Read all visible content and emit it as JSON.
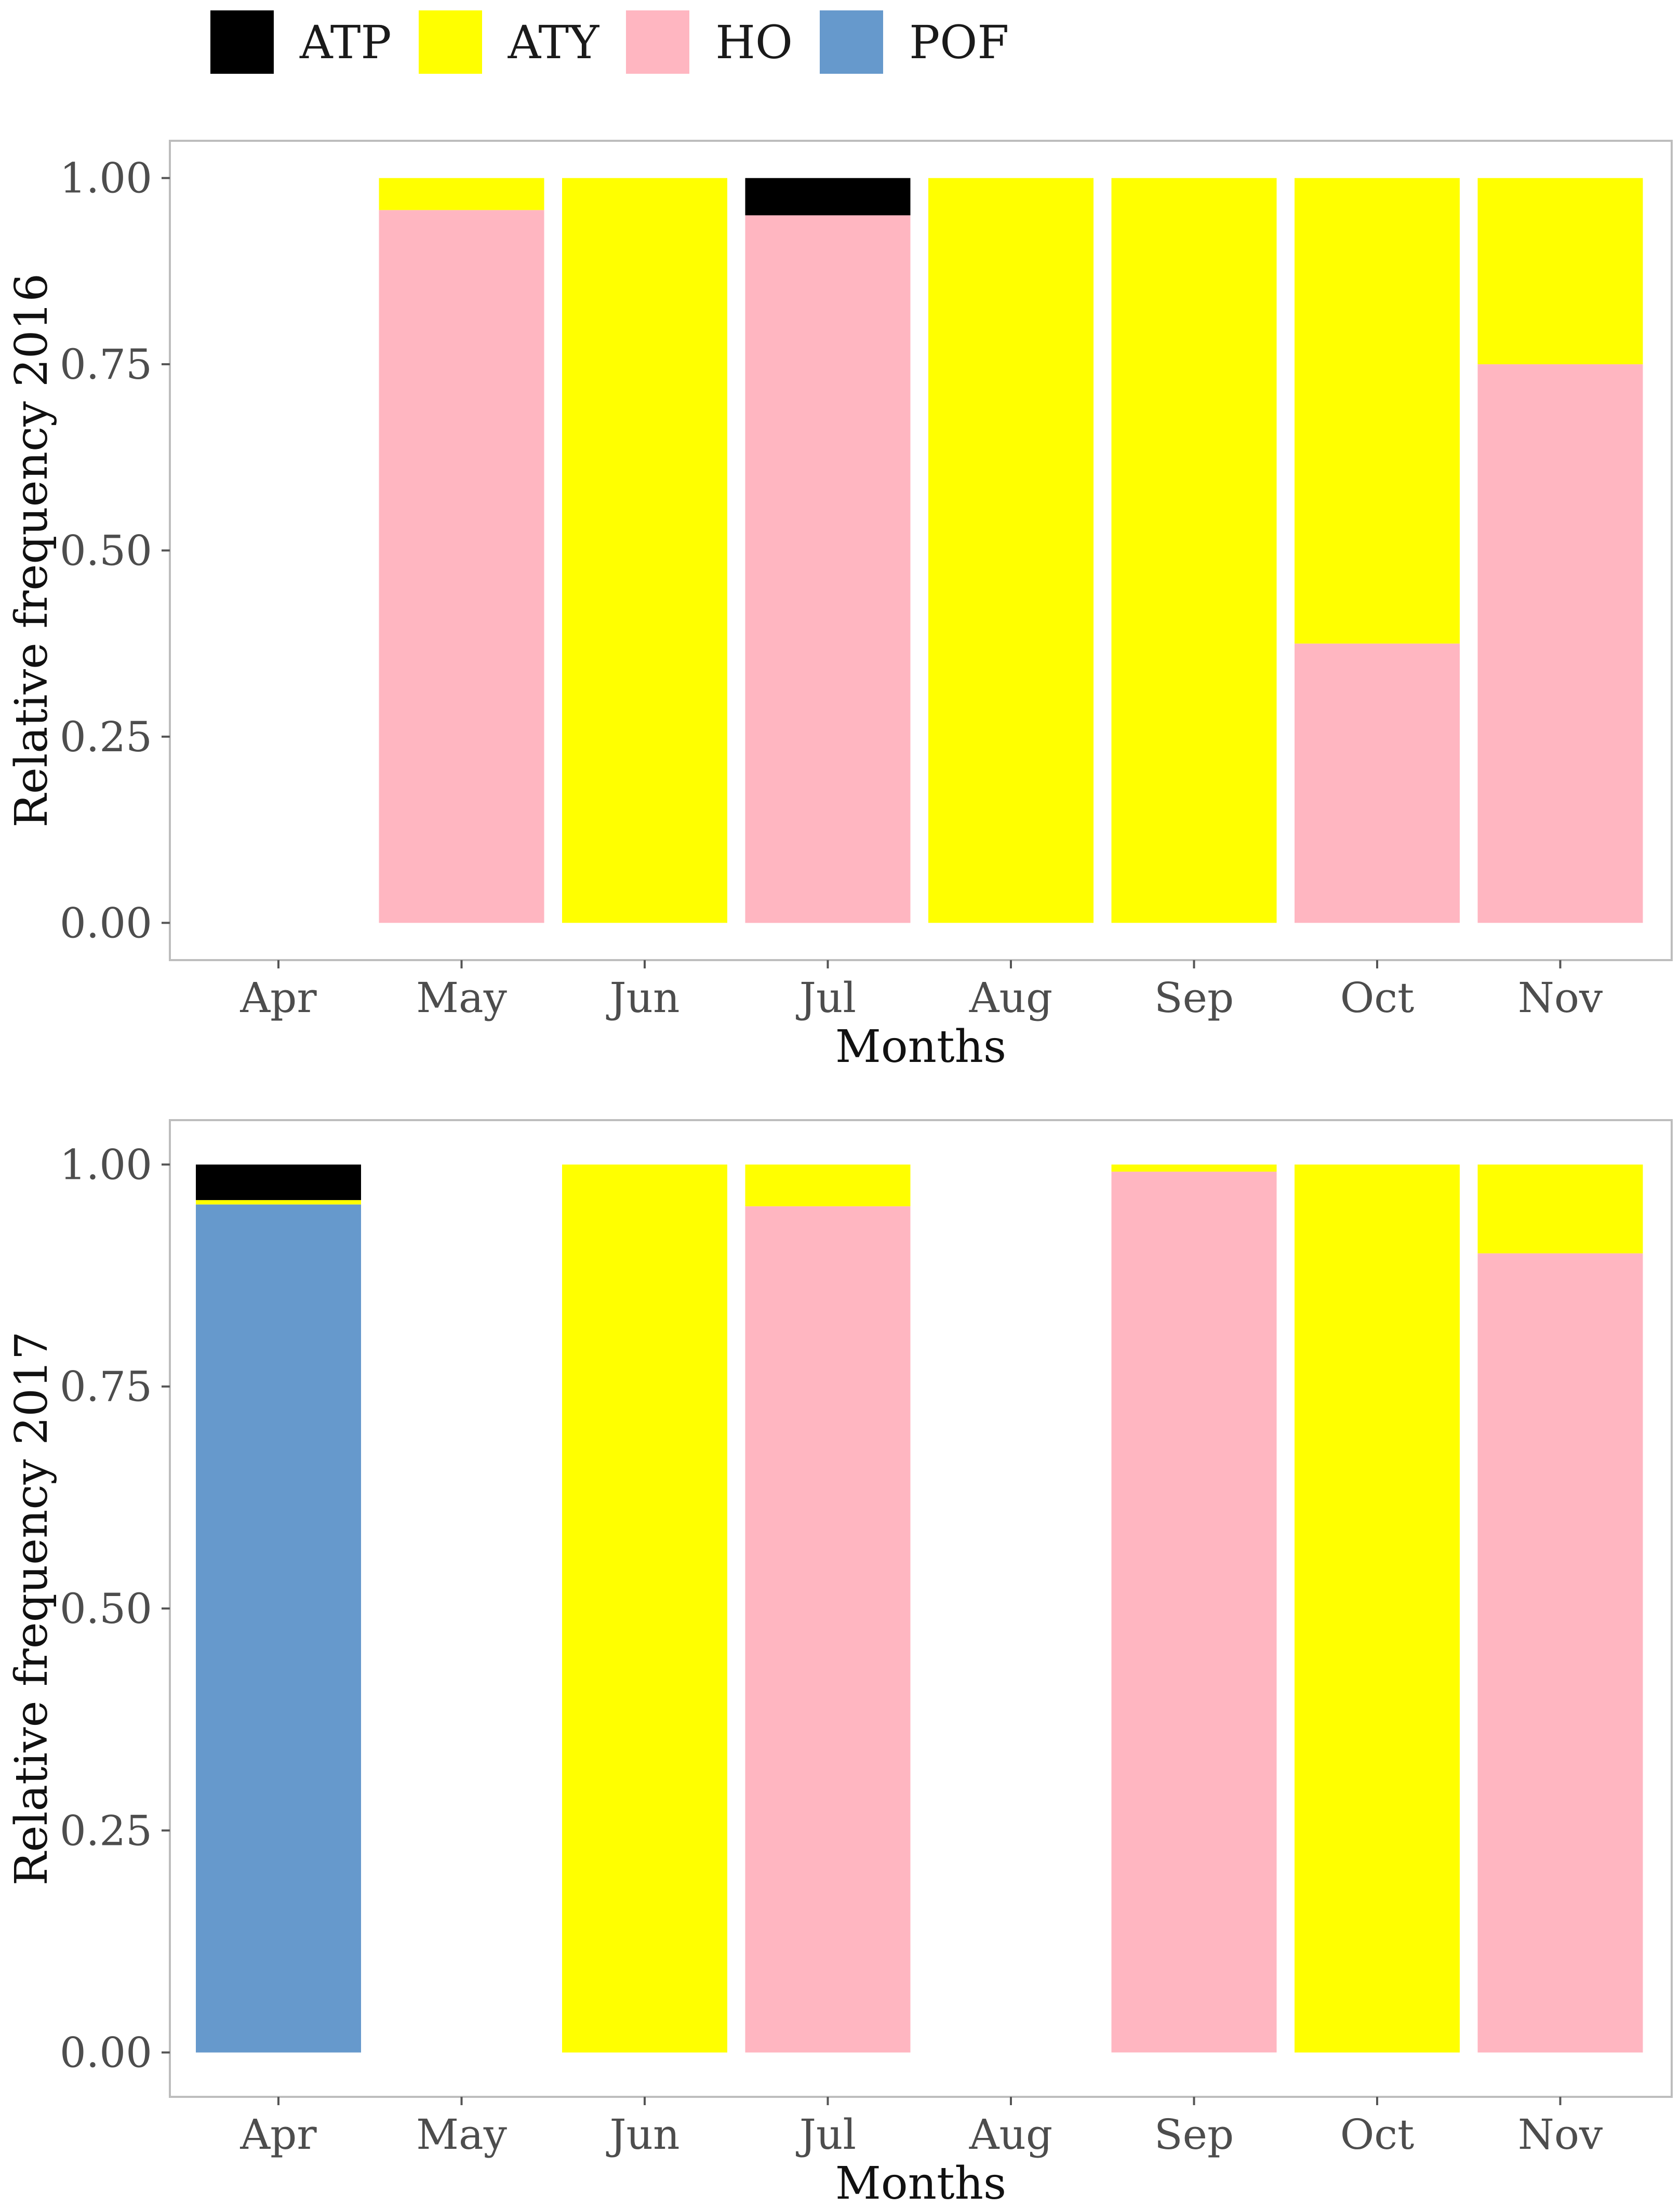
{
  "legend": {
    "items": [
      {
        "key": "ATP",
        "label": "ATP",
        "color": "#000000"
      },
      {
        "key": "ATY",
        "label": "ATY",
        "color": "#FFFF00"
      },
      {
        "key": "HO",
        "label": "HO",
        "color": "#FFB6C1"
      },
      {
        "key": "POF",
        "label": "POF",
        "color": "#6699CC"
      }
    ]
  },
  "chart_data": [
    {
      "type": "bar",
      "stacked": true,
      "title": "",
      "xlabel": "Months",
      "ylabel": "Relative frequency 2016",
      "ylim": [
        -0.05,
        1.05
      ],
      "yticks": [
        "0.00",
        "0.25",
        "0.50",
        "0.75",
        "1.00"
      ],
      "categories": [
        "Apr",
        "May",
        "Jun",
        "Jul",
        "Aug",
        "Sep",
        "Oct",
        "Nov"
      ],
      "series": [
        {
          "name": "POF",
          "values": [
            0,
            0,
            0,
            0,
            0,
            0,
            0,
            0
          ]
        },
        {
          "name": "HO",
          "values": [
            0,
            0.957,
            0,
            0.95,
            0,
            0,
            0.375,
            0.75
          ]
        },
        {
          "name": "ATY",
          "values": [
            0,
            0.043,
            1.0,
            0,
            1.0,
            1.0,
            0.625,
            0.25
          ]
        },
        {
          "name": "ATP",
          "values": [
            0,
            0,
            0,
            0.05,
            0,
            0,
            0,
            0
          ]
        }
      ]
    },
    {
      "type": "bar",
      "stacked": true,
      "title": "",
      "xlabel": "Months",
      "ylabel": "Relative frequency 2017",
      "ylim": [
        -0.05,
        1.05
      ],
      "yticks": [
        "0.00",
        "0.25",
        "0.50",
        "0.75",
        "1.00"
      ],
      "categories": [
        "Apr",
        "May",
        "Jun",
        "Jul",
        "Aug",
        "Sep",
        "Oct",
        "Nov"
      ],
      "series": [
        {
          "name": "POF",
          "values": [
            0.955,
            0,
            0,
            0,
            0,
            0,
            0,
            0
          ]
        },
        {
          "name": "HO",
          "values": [
            0,
            0,
            0,
            0.953,
            0,
            0.992,
            0,
            0.9
          ]
        },
        {
          "name": "ATY",
          "values": [
            0.005,
            0,
            1.0,
            0.047,
            0,
            0.008,
            1.0,
            0.1
          ]
        },
        {
          "name": "ATP",
          "values": [
            0.04,
            0,
            0,
            0,
            0,
            0,
            0,
            0
          ]
        }
      ]
    }
  ]
}
